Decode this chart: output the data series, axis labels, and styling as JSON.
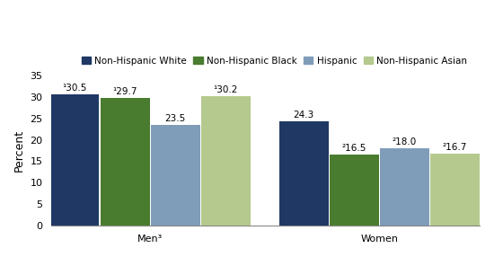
{
  "groups": [
    "Men³",
    "Women"
  ],
  "categories": [
    "Non-Hispanic White",
    "Non-Hispanic Black",
    "Hispanic",
    "Non-Hispanic Asian"
  ],
  "colors": [
    "#1f3864",
    "#4a7c2f",
    "#7f9db9",
    "#b5c98e"
  ],
  "values": {
    "Men³": [
      30.5,
      29.7,
      23.5,
      30.2
    ],
    "Women": [
      24.3,
      16.5,
      18.0,
      16.7
    ]
  },
  "labels": {
    "Men³": [
      "¹30.5",
      "¹29.7",
      "23.5",
      "¹30.2"
    ],
    "Women": [
      "24.3",
      "²16.5",
      "²18.0",
      "²16.7"
    ]
  },
  "ylabel": "Percent",
  "ylim": [
    0,
    35
  ],
  "yticks": [
    0,
    5,
    10,
    15,
    20,
    25,
    30,
    35
  ],
  "bar_width": 0.11,
  "legend_fontsize": 7.5,
  "tick_fontsize": 8,
  "label_fontsize": 7.5,
  "ylabel_fontsize": 9
}
